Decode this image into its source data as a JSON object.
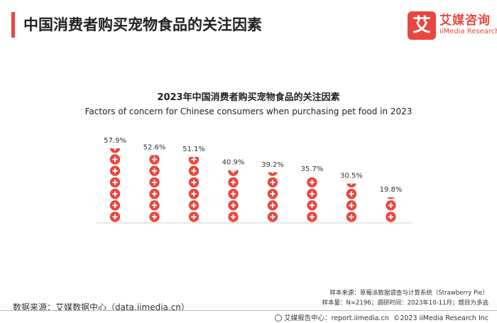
{
  "header": {
    "title": "中国消费者购买宠物食品的关注因素",
    "brand_logo_glyph": "艾",
    "brand_cn": "艾媒咨询",
    "brand_en": "iiMedia Research"
  },
  "chart_data": {
    "type": "bar",
    "title": "2023年中国消费者购买宠物食品的关注因素",
    "subtitle": "Factors of concern for Chinese consumers when purchasing pet food in 2023",
    "categories": [
      "",
      "",
      "",
      "",
      "",
      "",
      "",
      ""
    ],
    "values": [
      57.9,
      52.6,
      51.1,
      40.9,
      39.2,
      35.7,
      30.5,
      19.8
    ],
    "value_labels": [
      "57.9%",
      "52.6%",
      "51.1%",
      "40.9%",
      "39.2%",
      "35.7%",
      "30.5%",
      "19.8%"
    ],
    "unit": "%",
    "ylim": [
      0,
      60
    ],
    "grid": false,
    "legend": "none",
    "mark": "stacked-circle-icons-with-plus",
    "colors": {
      "icon": "#e8473f",
      "icon_symbol": "#ffffff",
      "baseline": "#cccccc"
    }
  },
  "footer": {
    "source_left": "数据来源：艾媒数据中心（data.iimedia.cn）",
    "sample_source": "样本来源：草莓派数据调查与计算系统（Strawberry Pie）",
    "sample_info": "样本量：N=2196；调研时间：2023年10-11月；题目为多选",
    "report_center": "艾媒报告中心：report.iimedia.cn",
    "copyright": "©2023  iiMedia Research  Inc"
  }
}
